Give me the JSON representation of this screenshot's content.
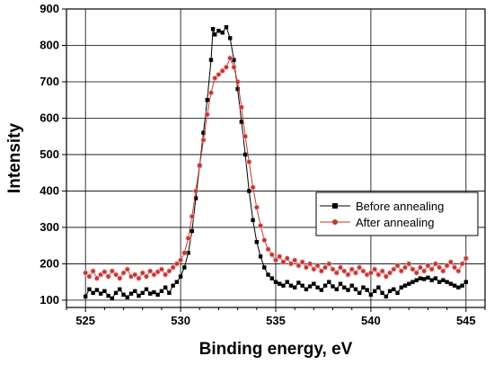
{
  "chart_data": {
    "type": "line",
    "title": "",
    "xlabel": "Binding energy, eV",
    "ylabel": "Intensity",
    "xlim": [
      524,
      546
    ],
    "ylim": [
      80,
      900
    ],
    "xticks": [
      525,
      530,
      535,
      540,
      545
    ],
    "yticks": [
      100,
      200,
      300,
      400,
      500,
      600,
      700,
      800,
      900
    ],
    "grid": true,
    "legend_position": "right",
    "series": [
      {
        "name": "Before annealing",
        "color": "#000000",
        "marker": "square",
        "points": [
          [
            525.0,
            110
          ],
          [
            525.2,
            130
          ],
          [
            525.4,
            120
          ],
          [
            525.6,
            128
          ],
          [
            525.8,
            118
          ],
          [
            526.0,
            125
          ],
          [
            526.2,
            112
          ],
          [
            526.4,
            105
          ],
          [
            526.6,
            120
          ],
          [
            526.8,
            130
          ],
          [
            527.0,
            115
          ],
          [
            527.2,
            108
          ],
          [
            527.4,
            118
          ],
          [
            527.6,
            125
          ],
          [
            527.8,
            112
          ],
          [
            528.0,
            120
          ],
          [
            528.2,
            130
          ],
          [
            528.4,
            118
          ],
          [
            528.6,
            122
          ],
          [
            528.8,
            115
          ],
          [
            529.0,
            125
          ],
          [
            529.2,
            135
          ],
          [
            529.4,
            120
          ],
          [
            529.6,
            140
          ],
          [
            529.8,
            150
          ],
          [
            530.0,
            165
          ],
          [
            530.2,
            190
          ],
          [
            530.4,
            230
          ],
          [
            530.6,
            290
          ],
          [
            530.8,
            380
          ],
          [
            531.0,
            470
          ],
          [
            531.2,
            560
          ],
          [
            531.4,
            650
          ],
          [
            531.6,
            760
          ],
          [
            531.7,
            845
          ],
          [
            531.8,
            830
          ],
          [
            532.0,
            840
          ],
          [
            532.2,
            835
          ],
          [
            532.4,
            850
          ],
          [
            532.6,
            820
          ],
          [
            532.8,
            760
          ],
          [
            533.0,
            680
          ],
          [
            533.2,
            590
          ],
          [
            533.4,
            500
          ],
          [
            533.6,
            400
          ],
          [
            533.8,
            320
          ],
          [
            534.0,
            260
          ],
          [
            534.2,
            220
          ],
          [
            534.4,
            190
          ],
          [
            534.6,
            170
          ],
          [
            534.8,
            160
          ],
          [
            535.0,
            150
          ],
          [
            535.2,
            145
          ],
          [
            535.4,
            140
          ],
          [
            535.6,
            150
          ],
          [
            535.8,
            140
          ],
          [
            536.0,
            135
          ],
          [
            536.2,
            148
          ],
          [
            536.4,
            140
          ],
          [
            536.6,
            130
          ],
          [
            536.8,
            138
          ],
          [
            537.0,
            145
          ],
          [
            537.2,
            135
          ],
          [
            537.4,
            128
          ],
          [
            537.6,
            140
          ],
          [
            537.8,
            150
          ],
          [
            538.0,
            138
          ],
          [
            538.2,
            130
          ],
          [
            538.4,
            145
          ],
          [
            538.6,
            135
          ],
          [
            538.8,
            128
          ],
          [
            539.0,
            140
          ],
          [
            539.2,
            130
          ],
          [
            539.4,
            120
          ],
          [
            539.6,
            135
          ],
          [
            539.8,
            128
          ],
          [
            540.0,
            115
          ],
          [
            540.2,
            125
          ],
          [
            540.4,
            135
          ],
          [
            540.6,
            120
          ],
          [
            540.8,
            110
          ],
          [
            541.0,
            125
          ],
          [
            541.2,
            130
          ],
          [
            541.4,
            120
          ],
          [
            541.6,
            135
          ],
          [
            541.8,
            140
          ],
          [
            542.0,
            145
          ],
          [
            542.2,
            150
          ],
          [
            542.4,
            155
          ],
          [
            542.6,
            160
          ],
          [
            542.8,
            158
          ],
          [
            543.0,
            162
          ],
          [
            543.2,
            155
          ],
          [
            543.4,
            160
          ],
          [
            543.6,
            150
          ],
          [
            543.8,
            155
          ],
          [
            544.0,
            150
          ],
          [
            544.2,
            145
          ],
          [
            544.4,
            140
          ],
          [
            544.6,
            135
          ],
          [
            544.8,
            140
          ],
          [
            545.0,
            150
          ]
        ]
      },
      {
        "name": "After annealing",
        "color": "#c0392b",
        "marker": "circle",
        "points": [
          [
            525.0,
            175
          ],
          [
            525.2,
            165
          ],
          [
            525.4,
            180
          ],
          [
            525.6,
            160
          ],
          [
            525.8,
            170
          ],
          [
            526.0,
            178
          ],
          [
            526.2,
            165
          ],
          [
            526.4,
            180
          ],
          [
            526.6,
            170
          ],
          [
            526.8,
            160
          ],
          [
            527.0,
            175
          ],
          [
            527.2,
            185
          ],
          [
            527.4,
            165
          ],
          [
            527.6,
            170
          ],
          [
            527.8,
            160
          ],
          [
            528.0,
            175
          ],
          [
            528.2,
            165
          ],
          [
            528.4,
            180
          ],
          [
            528.6,
            170
          ],
          [
            528.8,
            178
          ],
          [
            529.0,
            185
          ],
          [
            529.2,
            170
          ],
          [
            529.4,
            180
          ],
          [
            529.6,
            190
          ],
          [
            529.8,
            200
          ],
          [
            530.0,
            210
          ],
          [
            530.2,
            230
          ],
          [
            530.4,
            270
          ],
          [
            530.6,
            330
          ],
          [
            530.8,
            400
          ],
          [
            531.0,
            470
          ],
          [
            531.2,
            540
          ],
          [
            531.4,
            610
          ],
          [
            531.6,
            670
          ],
          [
            531.8,
            710
          ],
          [
            532.0,
            720
          ],
          [
            532.2,
            730
          ],
          [
            532.4,
            740
          ],
          [
            532.6,
            765
          ],
          [
            532.8,
            740
          ],
          [
            533.0,
            700
          ],
          [
            533.2,
            630
          ],
          [
            533.4,
            550
          ],
          [
            533.6,
            480
          ],
          [
            533.8,
            410
          ],
          [
            534.0,
            355
          ],
          [
            534.2,
            305
          ],
          [
            534.4,
            265
          ],
          [
            534.6,
            240
          ],
          [
            534.8,
            225
          ],
          [
            535.0,
            210
          ],
          [
            535.2,
            220
          ],
          [
            535.4,
            205
          ],
          [
            535.6,
            215
          ],
          [
            535.8,
            200
          ],
          [
            536.0,
            210
          ],
          [
            536.2,
            195
          ],
          [
            536.4,
            205
          ],
          [
            536.6,
            190
          ],
          [
            536.8,
            200
          ],
          [
            537.0,
            185
          ],
          [
            537.2,
            195
          ],
          [
            537.4,
            180
          ],
          [
            537.6,
            190
          ],
          [
            537.8,
            200
          ],
          [
            538.0,
            185
          ],
          [
            538.2,
            175
          ],
          [
            538.4,
            190
          ],
          [
            538.6,
            180
          ],
          [
            538.8,
            170
          ],
          [
            539.0,
            185
          ],
          [
            539.2,
            175
          ],
          [
            539.4,
            190
          ],
          [
            539.6,
            180
          ],
          [
            539.8,
            170
          ],
          [
            540.0,
            175
          ],
          [
            540.2,
            185
          ],
          [
            540.4,
            170
          ],
          [
            540.6,
            180
          ],
          [
            540.8,
            165
          ],
          [
            541.0,
            175
          ],
          [
            541.2,
            185
          ],
          [
            541.4,
            195
          ],
          [
            541.6,
            180
          ],
          [
            541.8,
            190
          ],
          [
            542.0,
            200
          ],
          [
            542.2,
            185
          ],
          [
            542.4,
            175
          ],
          [
            542.6,
            190
          ],
          [
            542.8,
            180
          ],
          [
            543.0,
            195
          ],
          [
            543.2,
            185
          ],
          [
            543.4,
            200
          ],
          [
            543.6,
            190
          ],
          [
            543.8,
            180
          ],
          [
            544.0,
            195
          ],
          [
            544.2,
            205
          ],
          [
            544.4,
            190
          ],
          [
            544.6,
            180
          ],
          [
            544.8,
            200
          ],
          [
            545.0,
            215
          ]
        ]
      }
    ]
  }
}
